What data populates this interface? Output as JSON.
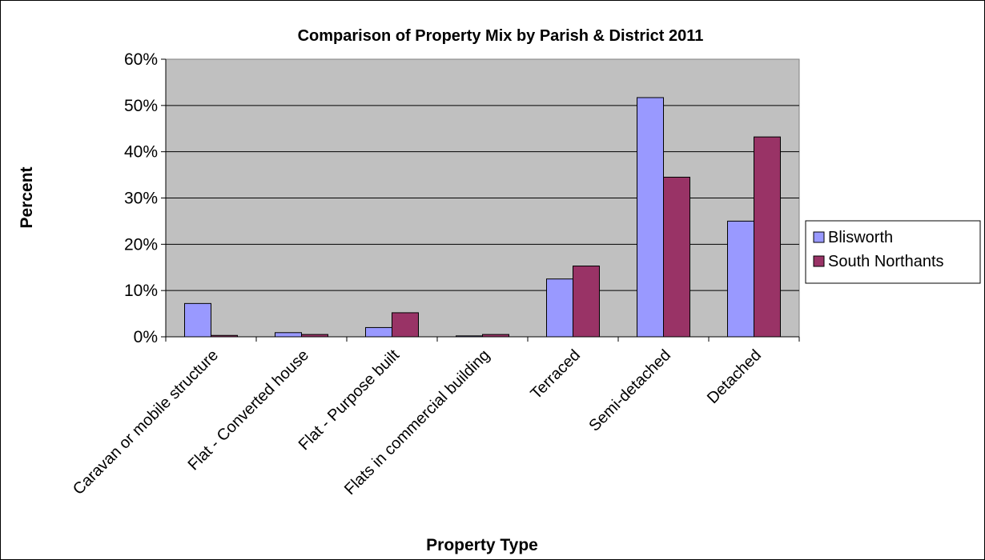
{
  "chart_data": {
    "type": "bar",
    "title": "Comparison of Property Mix by Parish & District 2011",
    "xlabel": "Property Type",
    "ylabel": "Percent",
    "ylim": [
      0,
      60
    ],
    "yticks": [
      "0%",
      "10%",
      "20%",
      "30%",
      "40%",
      "50%",
      "60%"
    ],
    "grid": true,
    "legend_position": "right",
    "plot_background": "#c0c0c0",
    "categories": [
      "Caravan or mobile structure",
      "Flat - Converted house",
      "Flat - Purpose built",
      "Flats in commercial building",
      "Terraced",
      "Semi-detached",
      "Detached"
    ],
    "series": [
      {
        "name": "Blisworth",
        "color": "#9999ff",
        "values": [
          7.2,
          0.9,
          2.0,
          0.2,
          12.5,
          51.7,
          25.0
        ]
      },
      {
        "name": "South Northants",
        "color": "#993366",
        "values": [
          0.3,
          0.5,
          5.2,
          0.5,
          15.3,
          34.5,
          43.2
        ]
      }
    ]
  }
}
